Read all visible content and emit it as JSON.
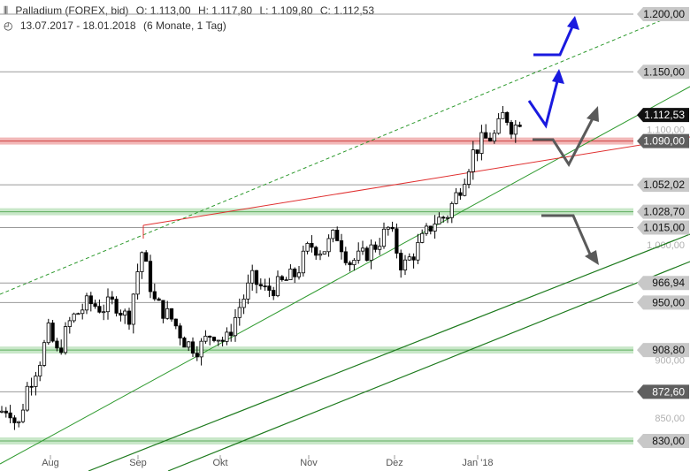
{
  "header": {
    "instrument": "Palladium (FOREX, bid)",
    "open": "O: 1.113,00",
    "high": "H: 1.117,80",
    "low": "L: 1.109,80",
    "close": "C: 1.112,53",
    "range": "13.07.2017 - 18.01.2018",
    "interval": "(6 Monate, 1 Tag)"
  },
  "chart_data": {
    "type": "candlestick",
    "ylim": [
      820,
      1210
    ],
    "x_tick_labels": [
      "Aug",
      "Sep",
      "Okt",
      "Nov",
      "Dez",
      "Jan '18"
    ],
    "y_tick_labels": [
      "850,00",
      "900,00",
      "1.000,00",
      "1.100,00"
    ],
    "price_lines": [
      {
        "label": "1.200,00",
        "value": 1200.0,
        "style": "line"
      },
      {
        "label": "1.150,00",
        "value": 1150.0,
        "style": "line"
      },
      {
        "label": "1.090,00",
        "value": 1090.0,
        "style": "zone-red"
      },
      {
        "label": "1.052,02",
        "value": 1052.02,
        "style": "line"
      },
      {
        "label": "1.028,70",
        "value": 1028.7,
        "style": "zone-green"
      },
      {
        "label": "1.015,00",
        "value": 1015.0,
        "style": "line"
      },
      {
        "label": "966,94",
        "value": 966.94,
        "style": "line"
      },
      {
        "label": "950,00",
        "value": 950.0,
        "style": "line"
      },
      {
        "label": "908,80",
        "value": 908.8,
        "style": "zone-green"
      },
      {
        "label": "872,60",
        "value": 872.6,
        "style": "line"
      },
      {
        "label": "830,00",
        "value": 830.0,
        "style": "zone-green"
      }
    ],
    "current_price": {
      "label": "1.112,53",
      "value": 1112.53
    },
    "colors": {
      "candle": "#000000",
      "resistance_zone": "#e87e7e",
      "support_zone": "#9ad49a",
      "trend_red": "#e03030",
      "trend_green": "#2f9a2f",
      "trend_dark_green": "#1d7a1d",
      "arrow_blue": "#1a1adf",
      "arrow_gray": "#5a5a5a",
      "label_gray": "#8a8a8a",
      "label_dark": "#5f5f5f"
    }
  }
}
